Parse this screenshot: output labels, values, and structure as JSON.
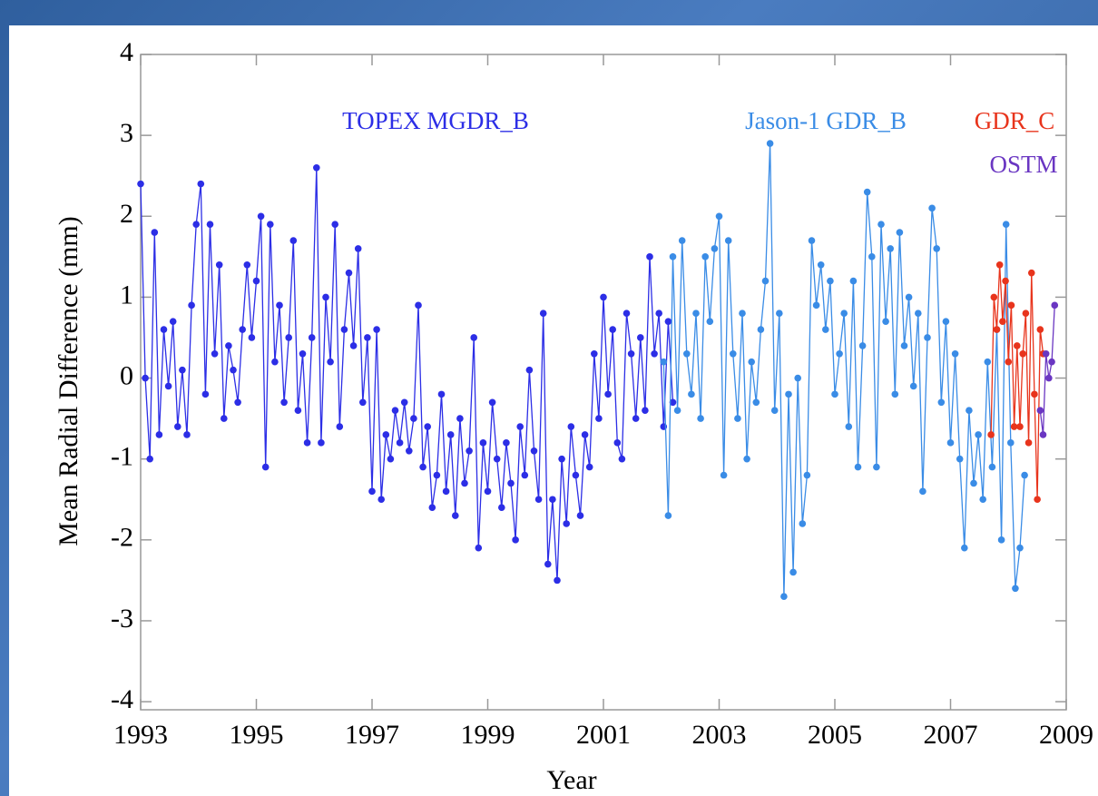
{
  "chart_data": {
    "type": "line",
    "x_label": "Year",
    "y_label": "Mean Radial Difference (mm)",
    "xlim": [
      1993,
      2009
    ],
    "xticks": [
      1993,
      1995,
      1997,
      1999,
      2001,
      2003,
      2005,
      2007,
      2009
    ],
    "ylim": [
      -4.1,
      4
    ],
    "yticks": [
      -4,
      -3,
      -2,
      -1,
      0,
      1,
      2,
      3,
      4
    ],
    "series": [
      {
        "name": "TOPEX MGDR_B",
        "color": "#2c2ee6",
        "x": [
          1993.0,
          1993.08,
          1993.16,
          1993.24,
          1993.32,
          1993.4,
          1993.48,
          1993.56,
          1993.64,
          1993.72,
          1993.8,
          1993.88,
          1993.96,
          1994.04,
          1994.12,
          1994.2,
          1994.28,
          1994.36,
          1994.44,
          1994.52,
          1994.6,
          1994.68,
          1994.76,
          1994.84,
          1994.92,
          1995.0,
          1995.08,
          1995.16,
          1995.24,
          1995.32,
          1995.4,
          1995.48,
          1995.56,
          1995.64,
          1995.72,
          1995.8,
          1995.88,
          1995.96,
          1996.04,
          1996.12,
          1996.2,
          1996.28,
          1996.36,
          1996.44,
          1996.52,
          1996.6,
          1996.68,
          1996.76,
          1996.84,
          1996.92,
          1997.0,
          1997.08,
          1997.16,
          1997.24,
          1997.32,
          1997.4,
          1997.48,
          1997.56,
          1997.64,
          1997.72,
          1997.8,
          1997.88,
          1997.96,
          1998.04,
          1998.12,
          1998.2,
          1998.28,
          1998.36,
          1998.44,
          1998.52,
          1998.6,
          1998.68,
          1998.76,
          1998.84,
          1998.92,
          1999.0,
          1999.08,
          1999.16,
          1999.24,
          1999.32,
          1999.4,
          1999.48,
          1999.56,
          1999.64,
          1999.72,
          1999.8,
          1999.88,
          1999.96,
          2000.04,
          2000.12,
          2000.2,
          2000.28,
          2000.36,
          2000.44,
          2000.52,
          2000.6,
          2000.68,
          2000.76,
          2000.84,
          2000.92,
          2001.0,
          2001.08,
          2001.16,
          2001.24,
          2001.32,
          2001.4,
          2001.48,
          2001.56,
          2001.64,
          2001.72,
          2001.8,
          2001.88,
          2001.96,
          2002.04,
          2002.12,
          2002.2
        ],
        "values": [
          2.4,
          0.0,
          -1.0,
          1.8,
          -0.7,
          0.6,
          -0.1,
          0.7,
          -0.6,
          0.1,
          -0.7,
          0.9,
          1.9,
          2.4,
          -0.2,
          1.9,
          0.3,
          1.4,
          -0.5,
          0.4,
          0.1,
          -0.3,
          0.6,
          1.4,
          0.5,
          1.2,
          2.0,
          -1.1,
          1.9,
          0.2,
          0.9,
          -0.3,
          0.5,
          1.7,
          -0.4,
          0.3,
          -0.8,
          0.5,
          2.6,
          -0.8,
          1.0,
          0.2,
          1.9,
          -0.6,
          0.6,
          1.3,
          0.4,
          1.6,
          -0.3,
          0.5,
          -1.4,
          0.6,
          -1.5,
          -0.7,
          -1.0,
          -0.4,
          -0.8,
          -0.3,
          -0.9,
          -0.5,
          0.9,
          -1.1,
          -0.6,
          -1.6,
          -1.2,
          -0.2,
          -1.4,
          -0.7,
          -1.7,
          -0.5,
          -1.3,
          -0.9,
          0.5,
          -2.1,
          -0.8,
          -1.4,
          -0.3,
          -1.0,
          -1.6,
          -0.8,
          -1.3,
          -2.0,
          -0.6,
          -1.2,
          0.1,
          -0.9,
          -1.5,
          0.8,
          -2.3,
          -1.5,
          -2.5,
          -1.0,
          -1.8,
          -0.6,
          -1.2,
          -1.7,
          -0.7,
          -1.1,
          0.3,
          -0.5,
          1.0,
          -0.2,
          0.6,
          -0.8,
          -1.0,
          0.8,
          0.3,
          -0.5,
          0.5,
          -0.4,
          1.5,
          0.3,
          0.8,
          -0.6,
          0.7,
          -0.3
        ]
      },
      {
        "name": "Jason-1 GDR_B",
        "color": "#3a8ce6",
        "x": [
          2002.04,
          2002.12,
          2002.2,
          2002.28,
          2002.36,
          2002.44,
          2002.52,
          2002.6,
          2002.68,
          2002.76,
          2002.84,
          2002.92,
          2003.0,
          2003.08,
          2003.16,
          2003.24,
          2003.32,
          2003.4,
          2003.48,
          2003.56,
          2003.64,
          2003.72,
          2003.8,
          2003.88,
          2003.96,
          2004.04,
          2004.12,
          2004.2,
          2004.28,
          2004.36,
          2004.44,
          2004.52,
          2004.6,
          2004.68,
          2004.76,
          2004.84,
          2004.92,
          2005.0,
          2005.08,
          2005.16,
          2005.24,
          2005.32,
          2005.4,
          2005.48,
          2005.56,
          2005.64,
          2005.72,
          2005.8,
          2005.88,
          2005.96,
          2006.04,
          2006.12,
          2006.2,
          2006.28,
          2006.36,
          2006.44,
          2006.52,
          2006.6,
          2006.68,
          2006.76,
          2006.84,
          2006.92,
          2007.0,
          2007.08,
          2007.16,
          2007.24,
          2007.32,
          2007.4,
          2007.48,
          2007.56,
          2007.64,
          2007.72,
          2007.8,
          2007.88,
          2007.96,
          2008.04,
          2008.12,
          2008.2,
          2008.28
        ],
        "values": [
          0.2,
          -1.7,
          1.5,
          -0.4,
          1.7,
          0.3,
          -0.2,
          0.8,
          -0.5,
          1.5,
          0.7,
          1.6,
          2.0,
          -1.2,
          1.7,
          0.3,
          -0.5,
          0.8,
          -1.0,
          0.2,
          -0.3,
          0.6,
          1.2,
          2.9,
          -0.4,
          0.8,
          -2.7,
          -0.2,
          -2.4,
          0.0,
          -1.8,
          -1.2,
          1.7,
          0.9,
          1.4,
          0.6,
          1.2,
          -0.2,
          0.3,
          0.8,
          -0.6,
          1.2,
          -1.1,
          0.4,
          2.3,
          1.5,
          -1.1,
          1.9,
          0.7,
          1.6,
          -0.2,
          1.8,
          0.4,
          1.0,
          -0.1,
          0.8,
          -1.4,
          0.5,
          2.1,
          1.6,
          -0.3,
          0.7,
          -0.8,
          0.3,
          -1.0,
          -2.1,
          -0.4,
          -1.3,
          -0.7,
          -1.5,
          0.2,
          -1.1,
          0.6,
          -2.0,
          1.9,
          -0.8,
          -2.6,
          -2.1,
          -1.2
        ]
      },
      {
        "name": "GDR_C",
        "color": "#e8341c",
        "x": [
          2007.7,
          2007.75,
          2007.8,
          2007.85,
          2007.9,
          2007.95,
          2008.0,
          2008.05,
          2008.1,
          2008.15,
          2008.2,
          2008.25,
          2008.3,
          2008.35,
          2008.4,
          2008.45,
          2008.5,
          2008.55,
          2008.6
        ],
        "values": [
          -0.7,
          1.0,
          0.6,
          1.4,
          0.7,
          1.2,
          0.2,
          0.9,
          -0.6,
          0.4,
          -0.6,
          0.3,
          0.8,
          -0.8,
          1.3,
          -0.2,
          -1.5,
          0.6,
          0.3
        ]
      },
      {
        "name": "OSTM",
        "color": "#6a36c2",
        "x": [
          2008.55,
          2008.6,
          2008.65,
          2008.7,
          2008.75,
          2008.8
        ],
        "values": [
          -0.4,
          -0.7,
          0.3,
          0.0,
          0.2,
          0.9
        ]
      }
    ]
  }
}
